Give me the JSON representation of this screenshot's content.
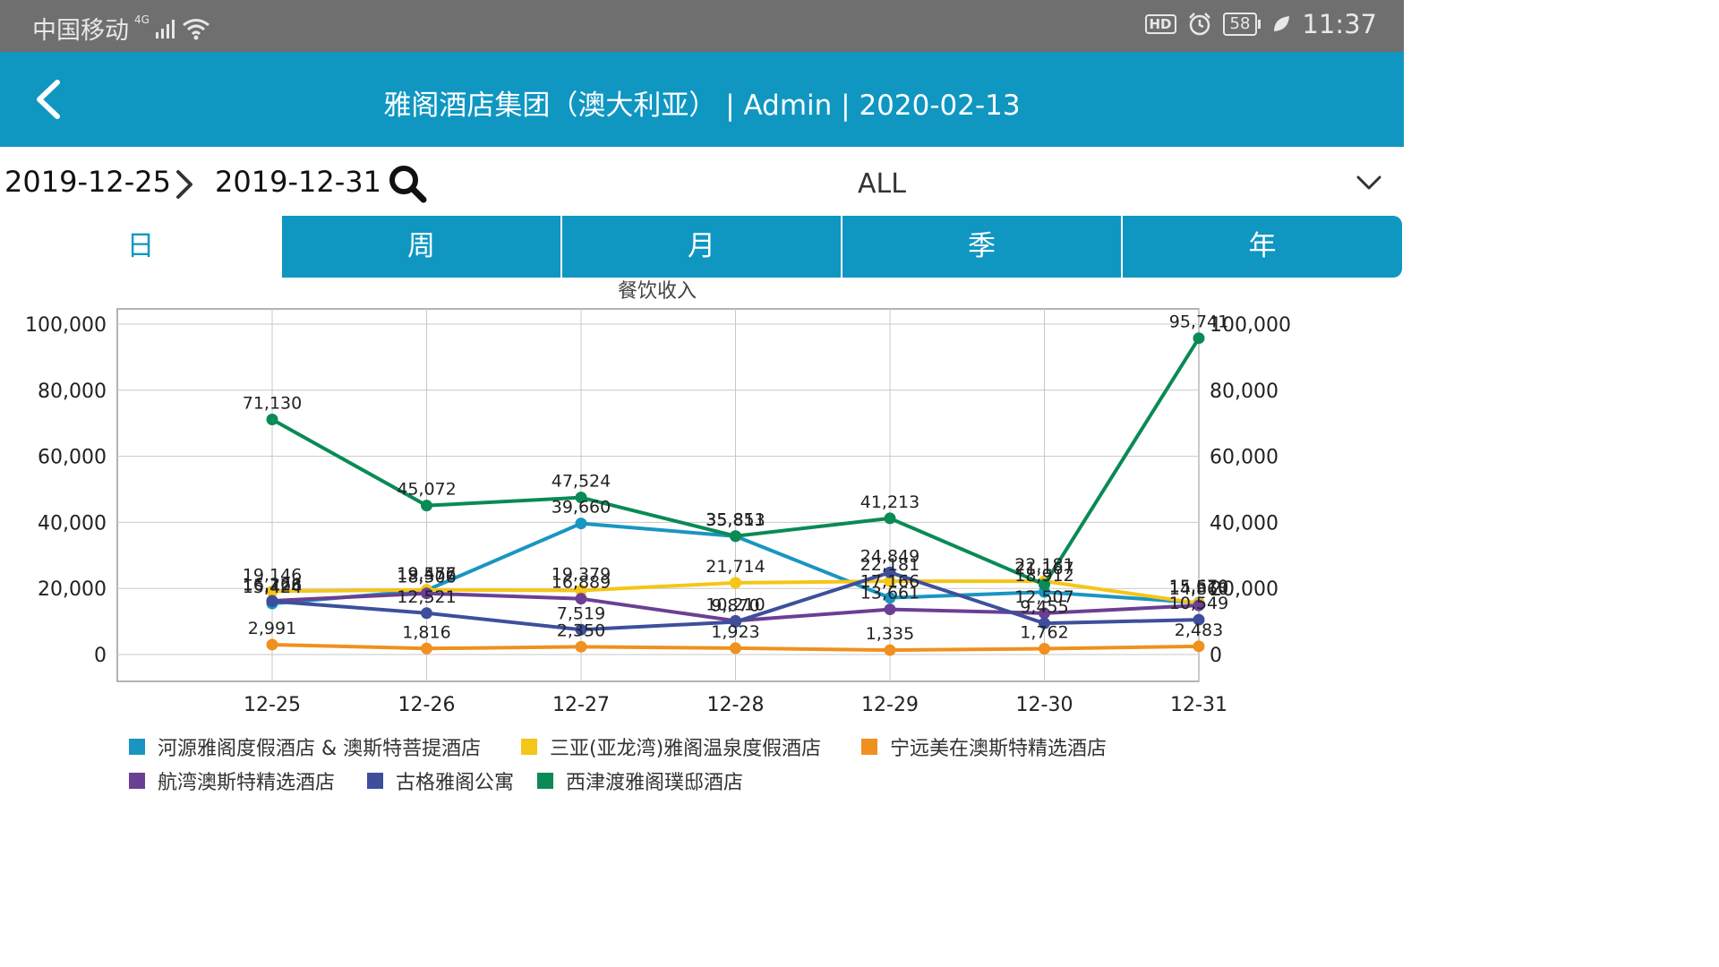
{
  "status_bar": {
    "carrier": "中国移动",
    "network": "4G",
    "battery": "58",
    "time": "11:37"
  },
  "header": {
    "title": "雅阁酒店集团（澳大利亚） | Admin | 2020-02-13"
  },
  "filter": {
    "start_date": "2019-12-25",
    "end_date": "2019-12-31",
    "hotel_select_value": "ALL"
  },
  "tabs": [
    {
      "label": "日",
      "active": true
    },
    {
      "label": "周",
      "active": false
    },
    {
      "label": "月",
      "active": false
    },
    {
      "label": "季",
      "active": false
    },
    {
      "label": "年",
      "active": false
    }
  ],
  "chart_data": {
    "type": "line",
    "title": "餐饮收入",
    "xlabel": "",
    "ylabel": "",
    "categories": [
      "12-25",
      "12-26",
      "12-27",
      "12-28",
      "12-29",
      "12-30",
      "12-31"
    ],
    "ylim": [
      0,
      100000
    ],
    "y_ticks": [
      "100,000",
      "80,000",
      "60,000",
      "40,000",
      "20,000",
      "0"
    ],
    "y_tick_values": [
      100000,
      80000,
      60000,
      40000,
      20000,
      0
    ],
    "grid": true,
    "legend_position": "bottom",
    "series": [
      {
        "name": "河源雅阁度假酒店 & 澳斯特菩提酒店",
        "color": "#1a95c1",
        "values": [
          15424,
          19456,
          39660,
          35813,
          17166,
          18912,
          15670
        ],
        "labels": [
          "15,424",
          "19,456",
          "39,660",
          "35,813",
          "17,166",
          "18,912",
          "15,670"
        ]
      },
      {
        "name": "三亚(亚龙湾)雅阁温泉度假酒店",
        "color": "#f5c518",
        "values": [
          19146,
          19577,
          19379,
          21714,
          22181,
          22181,
          15519
        ],
        "labels": [
          "19,146",
          "19,577",
          "19,379",
          "21,714",
          "22,181",
          "22,181",
          "15,519"
        ]
      },
      {
        "name": "宁远美在澳斯特精选酒店",
        "color": "#f0901e",
        "values": [
          2991,
          1816,
          2350,
          1923,
          1335,
          1762,
          2483
        ],
        "labels": [
          "2,991",
          "1,816",
          "2,350",
          "1,923",
          "1,335",
          "1,762",
          "2,483"
        ]
      },
      {
        "name": "航湾澳斯特精选酒店",
        "color": "#6b3f93",
        "values": [
          16266,
          18506,
          16889,
          10210,
          13661,
          12507,
          14860
        ],
        "labels": [
          "16,266",
          "18,506",
          "16,889",
          "10,210",
          "13,661",
          "12,507",
          "14,860"
        ]
      },
      {
        "name": "古格雅阁公寓",
        "color": "#3d4f9c",
        "values": [
          16128,
          12521,
          7519,
          9870,
          24849,
          9455,
          10549
        ],
        "labels": [
          "16,128",
          "12,521",
          "7,519",
          "9,870",
          "24,849",
          "9,455",
          "10,549"
        ]
      },
      {
        "name": "西津渡雅阁璞邸酒店",
        "color": "#0a8a55",
        "values": [
          71130,
          45072,
          47524,
          35851,
          41213,
          21167,
          95741
        ],
        "labels": [
          "71,130",
          "45,072",
          "47,524",
          "35,851",
          "41,213",
          "21,167",
          "95,741"
        ]
      }
    ]
  }
}
